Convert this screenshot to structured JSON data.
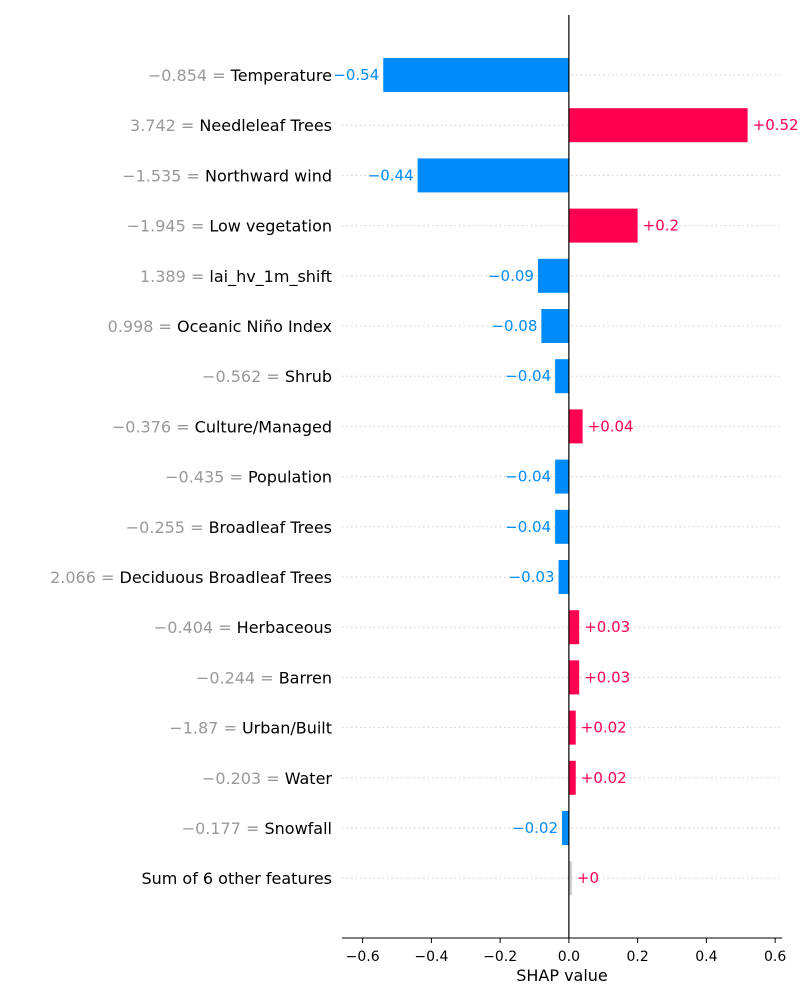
{
  "chart_data": {
    "type": "bar",
    "orientation": "horizontal",
    "xlabel": "SHAP value",
    "xlim": [
      -0.66,
      0.62
    ],
    "xticks": [
      -0.6,
      -0.4,
      -0.2,
      0.0,
      0.2,
      0.4,
      0.6
    ],
    "xtick_labels": [
      "−0.6",
      "−0.4",
      "−0.2",
      "0.0",
      "0.2",
      "0.4",
      "0.6"
    ],
    "grid": "dotted horizontal row guides",
    "colors": {
      "positive": "#ff0051",
      "negative": "#008bfb",
      "neutral": "#cccccc"
    },
    "rows": [
      {
        "feature_value": "−0.854",
        "feature": "Temperature",
        "value": -0.54,
        "label": "−0.54"
      },
      {
        "feature_value": "3.742",
        "feature": "Needleleaf Trees",
        "value": 0.52,
        "label": "+0.52"
      },
      {
        "feature_value": "−1.535",
        "feature": "Northward wind",
        "value": -0.44,
        "label": "−0.44"
      },
      {
        "feature_value": "−1.945",
        "feature": "Low vegetation",
        "value": 0.2,
        "label": "+0.2"
      },
      {
        "feature_value": "1.389",
        "feature": "lai_hv_1m_shift",
        "value": -0.09,
        "label": "−0.09"
      },
      {
        "feature_value": "0.998",
        "feature": "Oceanic Niño Index",
        "value": -0.08,
        "label": "−0.08"
      },
      {
        "feature_value": "−0.562",
        "feature": "Shrub",
        "value": -0.04,
        "label": "−0.04"
      },
      {
        "feature_value": "−0.376",
        "feature": "Culture/Managed",
        "value": 0.04,
        "label": "+0.04"
      },
      {
        "feature_value": "−0.435",
        "feature": "Population",
        "value": -0.04,
        "label": "−0.04"
      },
      {
        "feature_value": "−0.255",
        "feature": "Broadleaf Trees",
        "value": -0.04,
        "label": "−0.04"
      },
      {
        "feature_value": "2.066",
        "feature": "Deciduous Broadleaf Trees",
        "value": -0.03,
        "label": "−0.03"
      },
      {
        "feature_value": "−0.404",
        "feature": "Herbaceous",
        "value": 0.03,
        "label": "+0.03"
      },
      {
        "feature_value": "−0.244",
        "feature": "Barren",
        "value": 0.03,
        "label": "+0.03"
      },
      {
        "feature_value": "−1.87",
        "feature": "Urban/Built",
        "value": 0.02,
        "label": "+0.02"
      },
      {
        "feature_value": "−0.203",
        "feature": "Water",
        "value": 0.02,
        "label": "+0.02"
      },
      {
        "feature_value": "−0.177",
        "feature": "Snowfall",
        "value": -0.02,
        "label": "−0.02"
      },
      {
        "feature_value": "",
        "feature": "Sum of 6 other features",
        "value": 0.0,
        "label": "+0"
      }
    ]
  }
}
